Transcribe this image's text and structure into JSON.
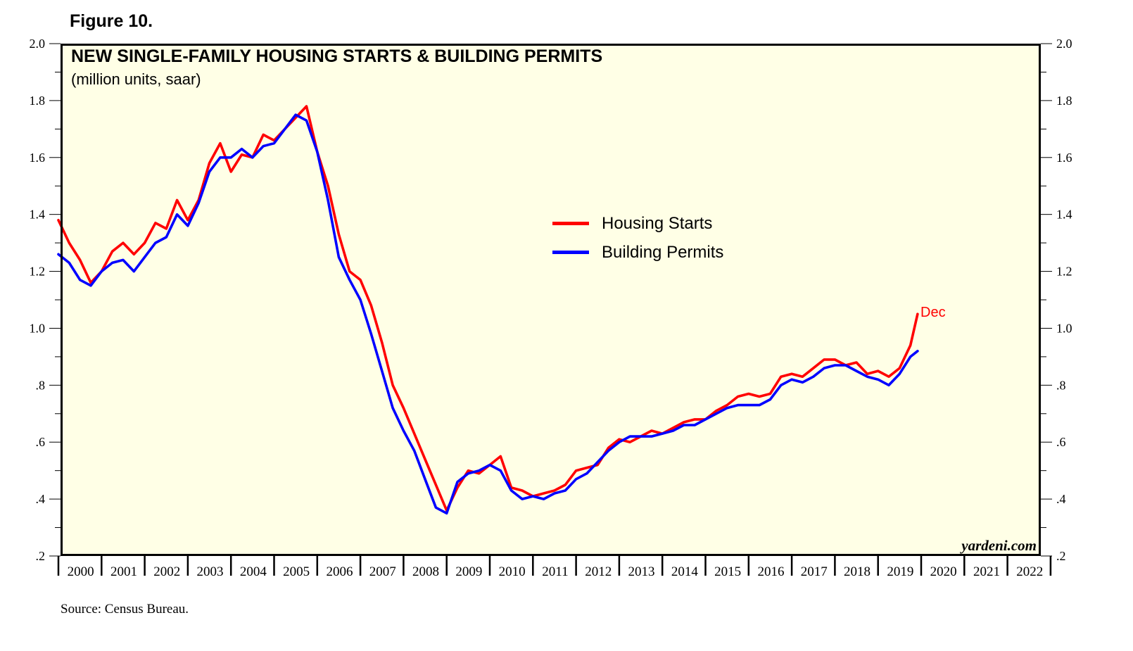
{
  "figure_label": "Figure 10.",
  "source": "Source: Census Bureau.",
  "watermark": "yardeni.com",
  "colors": {
    "starts": "#ff0000",
    "permits": "#0000ff",
    "plot_bg": "#ffffe6"
  },
  "chart_data": {
    "type": "line",
    "title": "NEW SINGLE-FAMILY HOUSING STARTS & BUILDING PERMITS",
    "subtitle": "(million units, saar)",
    "ylim": [
      0.2,
      2.0
    ],
    "yticks": [
      2.0,
      1.8,
      1.6,
      1.4,
      1.2,
      1.0,
      0.8,
      0.6,
      0.4,
      0.2
    ],
    "ytick_labels": [
      "2.0",
      "1.8",
      "1.6",
      "1.4",
      "1.2",
      "1.0",
      ".8",
      ".6",
      ".4",
      ".2"
    ],
    "x_range": [
      2000,
      2023
    ],
    "x_categories": [
      "2000",
      "2001",
      "2002",
      "2003",
      "2004",
      "2005",
      "2006",
      "2007",
      "2008",
      "2009",
      "2010",
      "2011",
      "2012",
      "2013",
      "2014",
      "2015",
      "2016",
      "2017",
      "2018",
      "2019",
      "2020",
      "2021",
      "2022"
    ],
    "annotation": "Dec",
    "series": [
      {
        "name": "Housing Starts",
        "color": "#ff0000",
        "x": [
          2000.0,
          2000.25,
          2000.5,
          2000.75,
          2001.0,
          2001.25,
          2001.5,
          2001.75,
          2002.0,
          2002.25,
          2002.5,
          2002.75,
          2003.0,
          2003.25,
          2003.5,
          2003.75,
          2004.0,
          2004.25,
          2004.5,
          2004.75,
          2005.0,
          2005.25,
          2005.5,
          2005.75,
          2006.0,
          2006.25,
          2006.5,
          2006.75,
          2007.0,
          2007.25,
          2007.5,
          2007.75,
          2008.0,
          2008.25,
          2008.5,
          2008.75,
          2009.0,
          2009.25,
          2009.5,
          2009.75,
          2010.0,
          2010.25,
          2010.5,
          2010.75,
          2011.0,
          2011.25,
          2011.5,
          2011.75,
          2012.0,
          2012.25,
          2012.5,
          2012.75,
          2013.0,
          2013.25,
          2013.5,
          2013.75,
          2014.0,
          2014.25,
          2014.5,
          2014.75,
          2015.0,
          2015.25,
          2015.5,
          2015.75,
          2016.0,
          2016.25,
          2016.5,
          2016.75,
          2017.0,
          2017.25,
          2017.5,
          2017.75,
          2018.0,
          2018.25,
          2018.5,
          2018.75,
          2019.0,
          2019.25,
          2019.5,
          2019.75,
          2019.917
        ],
        "y": [
          1.38,
          1.3,
          1.24,
          1.16,
          1.2,
          1.27,
          1.3,
          1.26,
          1.3,
          1.37,
          1.35,
          1.45,
          1.38,
          1.45,
          1.58,
          1.65,
          1.55,
          1.61,
          1.6,
          1.68,
          1.66,
          1.7,
          1.74,
          1.78,
          1.62,
          1.5,
          1.33,
          1.2,
          1.17,
          1.08,
          0.95,
          0.8,
          0.72,
          0.63,
          0.54,
          0.45,
          0.36,
          0.44,
          0.5,
          0.49,
          0.52,
          0.55,
          0.44,
          0.43,
          0.41,
          0.42,
          0.43,
          0.45,
          0.5,
          0.51,
          0.52,
          0.58,
          0.61,
          0.6,
          0.62,
          0.64,
          0.63,
          0.65,
          0.67,
          0.68,
          0.68,
          0.71,
          0.73,
          0.76,
          0.77,
          0.76,
          0.77,
          0.83,
          0.84,
          0.83,
          0.86,
          0.89,
          0.89,
          0.87,
          0.88,
          0.84,
          0.85,
          0.83,
          0.86,
          0.94,
          1.05
        ]
      },
      {
        "name": "Building Permits",
        "color": "#0000ff",
        "x": [
          2000.0,
          2000.25,
          2000.5,
          2000.75,
          2001.0,
          2001.25,
          2001.5,
          2001.75,
          2002.0,
          2002.25,
          2002.5,
          2002.75,
          2003.0,
          2003.25,
          2003.5,
          2003.75,
          2004.0,
          2004.25,
          2004.5,
          2004.75,
          2005.0,
          2005.25,
          2005.5,
          2005.75,
          2006.0,
          2006.25,
          2006.5,
          2006.75,
          2007.0,
          2007.25,
          2007.5,
          2007.75,
          2008.0,
          2008.25,
          2008.5,
          2008.75,
          2009.0,
          2009.25,
          2009.5,
          2009.75,
          2010.0,
          2010.25,
          2010.5,
          2010.75,
          2011.0,
          2011.25,
          2011.5,
          2011.75,
          2012.0,
          2012.25,
          2012.5,
          2012.75,
          2013.0,
          2013.25,
          2013.5,
          2013.75,
          2014.0,
          2014.25,
          2014.5,
          2014.75,
          2015.0,
          2015.25,
          2015.5,
          2015.75,
          2016.0,
          2016.25,
          2016.5,
          2016.75,
          2017.0,
          2017.25,
          2017.5,
          2017.75,
          2018.0,
          2018.25,
          2018.5,
          2018.75,
          2019.0,
          2019.25,
          2019.5,
          2019.75,
          2019.917
        ],
        "y": [
          1.26,
          1.23,
          1.17,
          1.15,
          1.2,
          1.23,
          1.24,
          1.2,
          1.25,
          1.3,
          1.32,
          1.4,
          1.36,
          1.44,
          1.55,
          1.6,
          1.6,
          1.63,
          1.6,
          1.64,
          1.65,
          1.7,
          1.75,
          1.73,
          1.62,
          1.45,
          1.25,
          1.17,
          1.1,
          0.98,
          0.85,
          0.72,
          0.64,
          0.57,
          0.47,
          0.37,
          0.35,
          0.46,
          0.49,
          0.5,
          0.52,
          0.5,
          0.43,
          0.4,
          0.41,
          0.4,
          0.42,
          0.43,
          0.47,
          0.49,
          0.53,
          0.57,
          0.6,
          0.62,
          0.62,
          0.62,
          0.63,
          0.64,
          0.66,
          0.66,
          0.68,
          0.7,
          0.72,
          0.73,
          0.73,
          0.73,
          0.75,
          0.8,
          0.82,
          0.81,
          0.83,
          0.86,
          0.87,
          0.87,
          0.85,
          0.83,
          0.82,
          0.8,
          0.84,
          0.9,
          0.92
        ]
      }
    ]
  }
}
